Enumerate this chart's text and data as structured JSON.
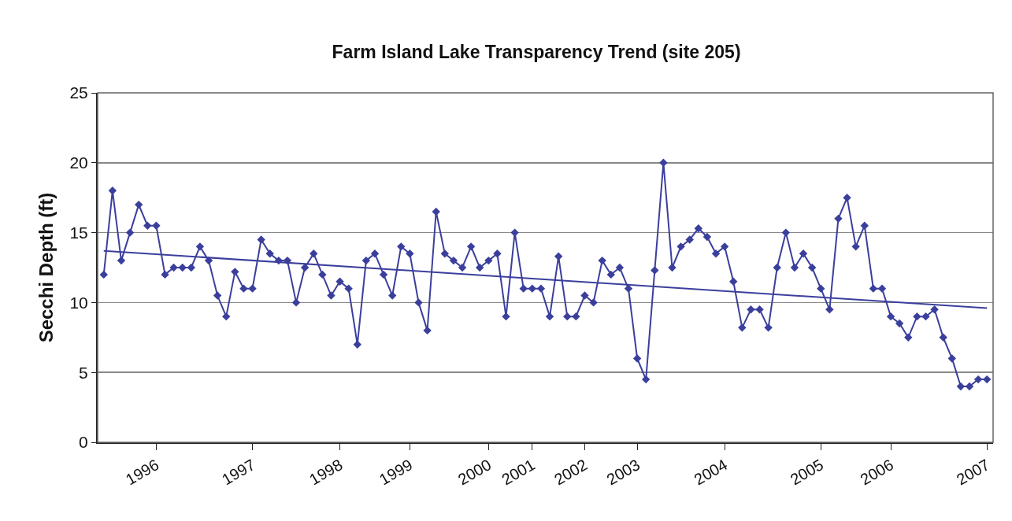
{
  "chart_data": {
    "type": "line",
    "title": "Farm Island Lake Transparency Trend (site 205)",
    "ylabel": "Secchi Depth (ft)",
    "categories": [
      null,
      null,
      null,
      null,
      null,
      null,
      "1996",
      null,
      null,
      null,
      null,
      null,
      null,
      null,
      null,
      null,
      null,
      "1997",
      null,
      null,
      null,
      null,
      null,
      null,
      null,
      null,
      null,
      "1998",
      null,
      null,
      null,
      null,
      null,
      null,
      null,
      "1999",
      null,
      null,
      null,
      null,
      null,
      null,
      null,
      null,
      "2000",
      null,
      null,
      null,
      null,
      "2001",
      null,
      null,
      null,
      null,
      null,
      "2002",
      null,
      null,
      null,
      null,
      null,
      "2003",
      null,
      null,
      null,
      null,
      null,
      null,
      null,
      null,
      null,
      "2004",
      null,
      null,
      null,
      null,
      null,
      null,
      null,
      null,
      null,
      null,
      "2005",
      null,
      null,
      null,
      null,
      null,
      null,
      null,
      "2006",
      null,
      null,
      null,
      null,
      null,
      null,
      null,
      null,
      null,
      null,
      "2007"
    ],
    "series": [
      {
        "color": "#3b3f9c",
        "marker": "diamond",
        "values": [
          12,
          18,
          13,
          15,
          17,
          15.5,
          15.5,
          12,
          12.5,
          12.5,
          12.5,
          14,
          13,
          10.5,
          9,
          12.2,
          11,
          11,
          14.5,
          13.5,
          13,
          13,
          10,
          12.5,
          13.5,
          12,
          10.5,
          11.5,
          11,
          7,
          13,
          13.5,
          12,
          10.5,
          14,
          13.5,
          10,
          8,
          16.5,
          13.5,
          13,
          12.5,
          14,
          12.5,
          13,
          13.5,
          9,
          15,
          11,
          11,
          11,
          9,
          13.3,
          9,
          9,
          10.5,
          10,
          13,
          12,
          12.5,
          11,
          6,
          4.5,
          12.3,
          20,
          12.5,
          14,
          14.5,
          15.3,
          14.7,
          13.5,
          14,
          11.5,
          8.2,
          9.5,
          9.5,
          8.2,
          12.5,
          15,
          12.5,
          13.5,
          12.5,
          11,
          9.5,
          16,
          17.5,
          14,
          15.5,
          11,
          11,
          9,
          8.5,
          7.5,
          9,
          9,
          9.5,
          7.5,
          6,
          4,
          4,
          4.5,
          4.5
        ]
      },
      {
        "color": "#3b3f9c",
        "marker": "none",
        "values": [
          13.7,
          null,
          null,
          null,
          null,
          null,
          null,
          null,
          null,
          null,
          null,
          null,
          null,
          null,
          null,
          null,
          null,
          null,
          null,
          null,
          null,
          null,
          null,
          null,
          null,
          null,
          null,
          null,
          null,
          null,
          null,
          null,
          null,
          null,
          null,
          null,
          null,
          null,
          null,
          null,
          null,
          null,
          null,
          null,
          null,
          null,
          null,
          null,
          null,
          null,
          null,
          null,
          null,
          null,
          null,
          null,
          null,
          null,
          null,
          null,
          null,
          null,
          null,
          null,
          null,
          null,
          null,
          null,
          null,
          null,
          null,
          null,
          null,
          null,
          null,
          null,
          null,
          null,
          null,
          null,
          null,
          null,
          null,
          null,
          null,
          null,
          null,
          null,
          null,
          null,
          null,
          null,
          null,
          null,
          null,
          null,
          null,
          null,
          null,
          null,
          null,
          9.6
        ]
      }
    ],
    "ylim": [
      0,
      25
    ],
    "yticks": [
      0,
      5,
      10,
      15,
      20,
      25
    ],
    "grid": "y"
  }
}
